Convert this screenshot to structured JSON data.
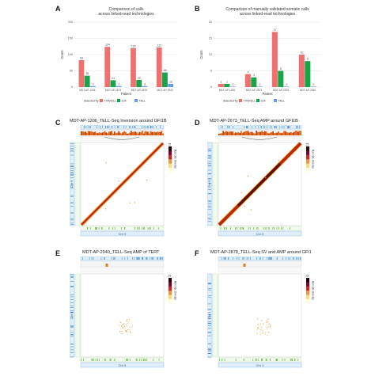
{
  "panels": {
    "a": {
      "letter": "A"
    },
    "b": {
      "letter": "B"
    },
    "c": {
      "letter": "C",
      "title": "MDT-AP-1206_TELL-Seq Inversion around GFI1B"
    },
    "d": {
      "letter": "D",
      "title": "MDT-AP-2673_TELL-Seq AMP around GFI1B"
    },
    "e": {
      "letter": "E",
      "title": "MDT-AP-2940_TELL-Seq AMP of TERT"
    },
    "f": {
      "letter": "F",
      "title": "MDT-AP-2878_TELL-Seq SV and AMP around GFI1"
    }
  },
  "legend": {
    "label": "detected by",
    "items": [
      {
        "name": "TXAFELL",
        "color": "#f07070"
      },
      {
        "name": "10X",
        "color": "#19a34a"
      },
      {
        "name": "TELL",
        "color": "#6d9be8"
      }
    ]
  },
  "chart_data": [
    {
      "type": "bar",
      "title": "Comparison of calls across linked-read technologies",
      "xlabel": "Patient",
      "ylabel": "Count",
      "ylim": [
        0,
        200
      ],
      "yticks": [
        0,
        50,
        100,
        150,
        200
      ],
      "categories": [
        "MDT-AP-1206",
        "MDT-AP-2673",
        "MDT-AP-2878",
        "MDT-AP-2940"
      ],
      "series": [
        {
          "name": "TXAFELL",
          "color": "#f07070",
          "values": [
            83,
            124,
            120,
            122
          ],
          "labels": [
            "83",
            "124",
            "120",
            "122"
          ]
        },
        {
          "name": "10X",
          "color": "#19a34a",
          "values": [
            35,
            21,
            22,
            45
          ],
          "labels": [
            "35",
            "21",
            "22",
            "45"
          ]
        },
        {
          "name": "TELL",
          "color": "#6d9be8",
          "values": [
            3,
            3,
            3,
            10
          ],
          "labels": [
            "3",
            "3",
            "3",
            "10"
          ]
        }
      ]
    },
    {
      "type": "bar",
      "title": "Comparison of manually validated somatic calls across linked-read technologies",
      "xlabel": "Patient",
      "ylabel": "Count",
      "ylim": [
        0,
        20
      ],
      "yticks": [
        0,
        5,
        10,
        15,
        20
      ],
      "categories": [
        "MDT-AP-1206",
        "MDT-AP-2673",
        "MDT-AP-2878",
        "MDT-AP-2940"
      ],
      "series": [
        {
          "name": "TXAFELL",
          "color": "#f07070",
          "values": [
            1,
            4,
            17,
            10
          ],
          "labels": [
            "1",
            "4",
            "17",
            "10"
          ]
        },
        {
          "name": "10X",
          "color": "#19a34a",
          "values": [
            1,
            3,
            5,
            8
          ],
          "labels": [
            "1",
            "3",
            "5",
            "8"
          ]
        },
        {
          "name": "TELL",
          "color": "#6d9be8",
          "values": [
            0,
            0,
            0,
            0
          ],
          "labels": [
            "0",
            "0",
            "0",
            "0"
          ]
        }
      ]
    },
    {
      "type": "heatmap",
      "pattern": "diagonal",
      "axis_label_y": "Chr 9",
      "axis_label_x": "Chr 9",
      "colorbar_max": "25",
      "colorbar_label": "Barcode Overlap"
    },
    {
      "type": "heatmap",
      "pattern": "diagonal-amp",
      "axis_label_y": "Chr 9",
      "axis_label_x": "Chr 9",
      "colorbar_max": "25",
      "colorbar_label": "Barcode Overlap"
    },
    {
      "type": "heatmap",
      "pattern": "sparse",
      "axis_label_y": "Chr 5",
      "axis_label_x": "Chr 5",
      "colorbar_max": "25",
      "colorbar_label": "Barcode Overlap"
    },
    {
      "type": "heatmap",
      "pattern": "sparse",
      "axis_label_y": "Chr 1",
      "axis_label_x": "Chr 1",
      "colorbar_max": "25",
      "colorbar_label": "Barcode Overlap"
    }
  ]
}
